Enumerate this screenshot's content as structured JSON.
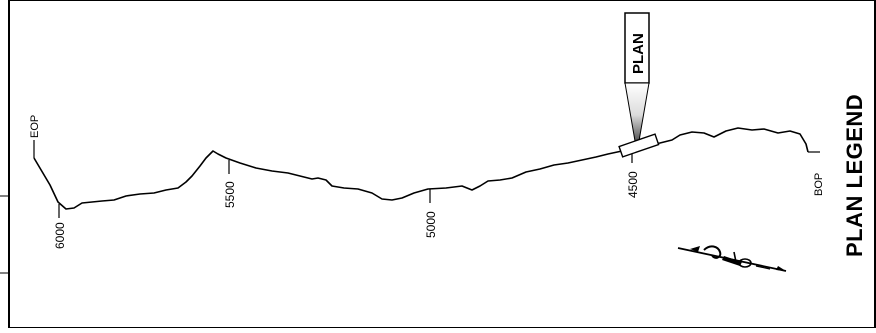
{
  "legend": {
    "title": "PLAN LEGEND"
  },
  "callout": {
    "label": "PLAN"
  },
  "stations": [
    {
      "label": "6000"
    },
    {
      "label": "5500"
    },
    {
      "label": "5000"
    },
    {
      "label": "4500"
    }
  ],
  "ends": {
    "start": "BOP",
    "end": "EOP"
  },
  "icons": {
    "north_arrow": "north-arrow-icon"
  }
}
